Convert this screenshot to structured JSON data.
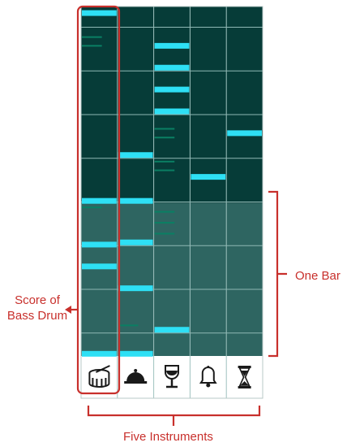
{
  "labels": {
    "score_line1": "Score of",
    "score_line2": "Bass Drum",
    "one_bar": "One Bar",
    "five_instruments": "Five Instruments"
  },
  "colors": {
    "grid_dark": "#063c38",
    "grid_light": "#2e6561",
    "grid_line": "#8fb8b4",
    "note": "#2ee0f5",
    "note_dim": "#0a7f63",
    "annotation": "#c8302c",
    "icon": "#1a1a1a"
  },
  "instruments": [
    {
      "name": "bass-drum",
      "icon": "drum-icon"
    },
    {
      "name": "cloche",
      "icon": "cloche-icon"
    },
    {
      "name": "wine-glass",
      "icon": "wine-glass-icon"
    },
    {
      "name": "bell",
      "icon": "bell-icon"
    },
    {
      "name": "hourglass",
      "icon": "hourglass-icon"
    }
  ],
  "rows": 16,
  "active_rows": 9,
  "notes": [
    {
      "col": 0,
      "row": 0.3
    },
    {
      "col": 0,
      "row": 8.9
    },
    {
      "col": 0,
      "row": 10.9
    },
    {
      "col": 0,
      "row": 11.9
    },
    {
      "col": 0,
      "row": 15.9
    },
    {
      "col": 1,
      "row": 6.8
    },
    {
      "col": 1,
      "row": 8.9
    },
    {
      "col": 1,
      "row": 10.8
    },
    {
      "col": 1,
      "row": 12.9
    },
    {
      "col": 1,
      "row": 15.9
    },
    {
      "col": 2,
      "row": 1.8
    },
    {
      "col": 2,
      "row": 2.8
    },
    {
      "col": 2,
      "row": 3.8
    },
    {
      "col": 2,
      "row": 4.8
    },
    {
      "col": 2,
      "row": 14.8
    },
    {
      "col": 3,
      "row": 7.8
    },
    {
      "col": 4,
      "row": 5.8
    }
  ],
  "dim_notes": [
    {
      "col": 0,
      "row": 1.4
    },
    {
      "col": 0,
      "row": 1.8
    },
    {
      "col": 0,
      "row": 9.2
    },
    {
      "col": 1,
      "row": 14.6
    },
    {
      "col": 2,
      "row": 5.6
    },
    {
      "col": 2,
      "row": 6.0
    },
    {
      "col": 2,
      "row": 7.1
    },
    {
      "col": 2,
      "row": 7.5
    },
    {
      "col": 2,
      "row": 9.4
    },
    {
      "col": 2,
      "row": 9.9
    },
    {
      "col": 2,
      "row": 10.4
    }
  ]
}
